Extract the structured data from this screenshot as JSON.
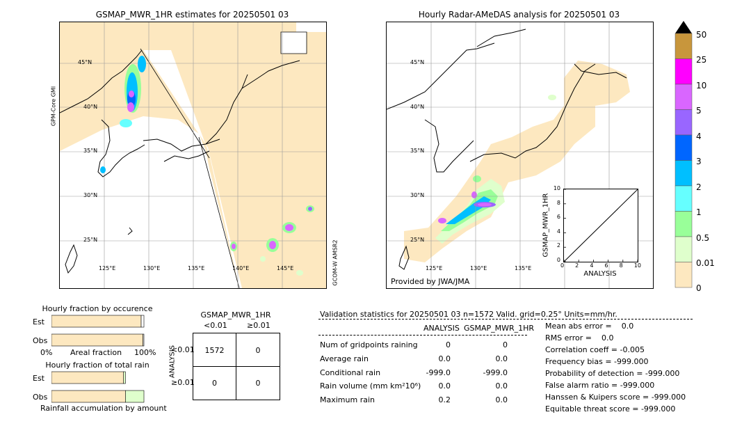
{
  "left_map": {
    "title": "GSMAP_MWR_1HR estimates for 20250501 03",
    "lat_labels": [
      "45°N",
      "40°N",
      "35°N",
      "30°N",
      "25°N"
    ],
    "lon_labels": [
      "125°E",
      "130°E",
      "135°E",
      "140°E",
      "145°E"
    ],
    "side_label_left": "GPM-Core GMI",
    "side_label_right": "GCOM-W AMSR2"
  },
  "right_map": {
    "title": "Hourly Radar-AMeDAS analysis for 20250501 03",
    "lat_labels": [
      "45°N",
      "40°N",
      "35°N",
      "30°N",
      "25°N"
    ],
    "lon_labels": [
      "125°E",
      "130°E",
      "135°E"
    ],
    "credit": "Provided by JWA/JMA"
  },
  "colorbar": {
    "labels": [
      "50",
      "25",
      "10",
      "5",
      "4",
      "3",
      "2",
      "1",
      "0.5",
      "0.01",
      "0"
    ],
    "colors": [
      "#c8963c",
      "#ff00ff",
      "#d966ff",
      "#9966ff",
      "#0066ff",
      "#00bfff",
      "#66ffff",
      "#99ff99",
      "#dfffcc",
      "#fde8c0"
    ],
    "top_arrow_color": "#000000"
  },
  "chart_data": [
    {
      "type": "scatter",
      "title": "",
      "xlabel": "ANALYSIS",
      "ylabel": "GSMAP_MWR_1HR",
      "xlim": [
        0,
        10
      ],
      "ylim": [
        0,
        10
      ],
      "xticks": [
        "0",
        "2",
        "4",
        "6",
        "8",
        "10"
      ],
      "yticks": [
        "0",
        "2",
        "4",
        "6",
        "8",
        "10"
      ],
      "diagonal": true,
      "points": []
    },
    {
      "type": "bar",
      "title": "Hourly fraction by occurence",
      "categories": [
        "Est",
        "Obs"
      ],
      "xlabel": "Areal fraction",
      "xtick_left": "0%",
      "xtick_right": "100%",
      "series": [
        {
          "values": [
            0.97,
            0.99
          ],
          "color": "#fde8c0"
        },
        {
          "values": [
            0.03,
            0.01
          ],
          "color": "#ffffff"
        }
      ]
    },
    {
      "type": "bar",
      "title": "Hourly fraction of total rain",
      "categories": [
        "Est",
        "Obs"
      ],
      "xlabel": "Rainfall accumulation by amount",
      "series": [
        {
          "values": [
            0.78,
            0.8
          ],
          "color": "#fde8c0"
        },
        {
          "values": [
            0.02,
            0.2
          ],
          "color": "#dfffcc"
        }
      ]
    }
  ],
  "contingency": {
    "title": "GSMAP_MWR_1HR",
    "col_headers": [
      "<0.01",
      "≥0.01"
    ],
    "row_axis_label": "ANALYSIS",
    "row_headers": [
      "<0.01",
      "≥0.01"
    ],
    "cells": [
      [
        "1572",
        "0"
      ],
      [
        "0",
        "0"
      ]
    ]
  },
  "validation": {
    "header": "Validation statistics for 20250501 03  n=1572 Valid. grid=0.25° Units=mm/hr.",
    "col_analysis": "ANALYSIS",
    "col_gsmap": "GSMAP_MWR_1HR",
    "rows": [
      {
        "label": "Num of gridpoints raining",
        "analysis": "0",
        "gsmap": "0"
      },
      {
        "label": "Average rain",
        "analysis": "0.0",
        "gsmap": "0.0"
      },
      {
        "label": "Conditional rain",
        "analysis": "-999.0",
        "gsmap": "-999.0"
      },
      {
        "label": "Rain volume (mm km²10⁶)",
        "analysis": "0.0",
        "gsmap": "0.0"
      },
      {
        "label": "Maximum rain",
        "analysis": "0.2",
        "gsmap": "0.0"
      }
    ],
    "scores": [
      "Mean abs error =    0.0",
      "RMS error =    0.0",
      "Correlation coeff = -0.005",
      "Frequency bias = -999.000",
      "Probability of detection = -999.000",
      "False alarm ratio = -999.000",
      "Hanssen & Kuipers score = -999.000",
      "Equitable threat score = -999.000"
    ]
  }
}
